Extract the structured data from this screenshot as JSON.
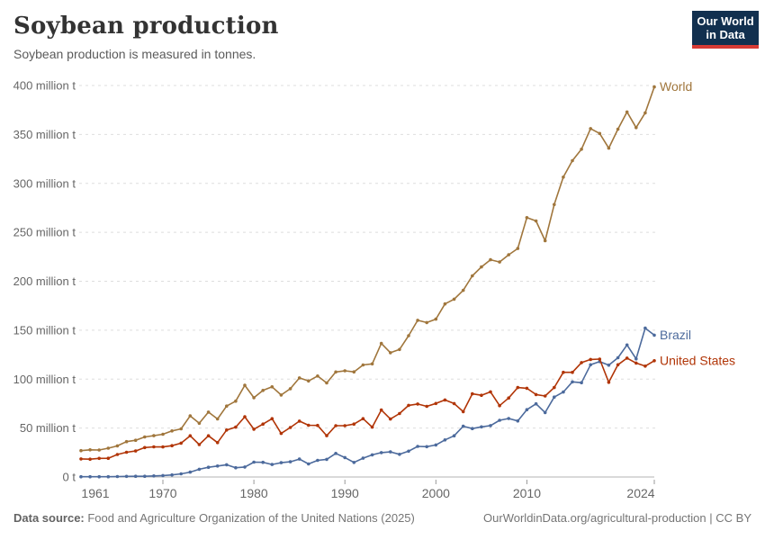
{
  "header": {
    "title": "Soybean production",
    "subtitle": "Soybean production is measured in tonnes."
  },
  "logo": {
    "line1": "Our World",
    "line2": "in Data",
    "bg_color": "#12304f",
    "accent_color": "#d73a34"
  },
  "footer": {
    "datasource_label": "Data source:",
    "datasource_text": " Food and Agriculture Organization of the United Nations (2025)",
    "url": "OurWorldinData.org/agricultural-production",
    "separator": " | ",
    "license": "CC BY"
  },
  "chart_data": {
    "type": "line",
    "title": "Soybean production",
    "unit": "tonnes",
    "xlabel": "",
    "ylabel": "",
    "xlim": [
      1961,
      2024
    ],
    "ylim": [
      0,
      400
    ],
    "grid": "horizontal-dashed",
    "legend_position": "end-of-line-labels",
    "xticks": [
      1961,
      1970,
      1980,
      1990,
      2000,
      2010,
      2024
    ],
    "yticks": [
      {
        "value": 0,
        "label": "0 t"
      },
      {
        "value": 50,
        "label": "50 million t"
      },
      {
        "value": 100,
        "label": "100 million t"
      },
      {
        "value": 150,
        "label": "150 million t"
      },
      {
        "value": 200,
        "label": "200 million t"
      },
      {
        "value": 250,
        "label": "250 million t"
      },
      {
        "value": 300,
        "label": "300 million t"
      },
      {
        "value": 350,
        "label": "350 million t"
      },
      {
        "value": 400,
        "label": "400 million t"
      }
    ],
    "x": [
      1961,
      1962,
      1963,
      1964,
      1965,
      1966,
      1967,
      1968,
      1969,
      1970,
      1971,
      1972,
      1973,
      1974,
      1975,
      1976,
      1977,
      1978,
      1979,
      1980,
      1981,
      1982,
      1983,
      1984,
      1985,
      1986,
      1987,
      1988,
      1989,
      1990,
      1991,
      1992,
      1993,
      1994,
      1995,
      1996,
      1997,
      1998,
      1999,
      2000,
      2001,
      2002,
      2003,
      2004,
      2005,
      2006,
      2007,
      2008,
      2009,
      2010,
      2011,
      2012,
      2013,
      2014,
      2015,
      2016,
      2017,
      2018,
      2019,
      2020,
      2021,
      2022,
      2023,
      2024
    ],
    "series": [
      {
        "name": "World",
        "color": "#A0763C",
        "values": [
          26.9,
          27.8,
          27.6,
          29.4,
          31.8,
          36.1,
          37.5,
          40.9,
          42.2,
          43.7,
          47.1,
          49.2,
          62.4,
          54.9,
          66.3,
          59.3,
          72.5,
          77.5,
          93.7,
          81.0,
          88.5,
          92.1,
          83.8,
          90.2,
          101.2,
          98.1,
          103.2,
          96.1,
          107.3,
          108.5,
          107.4,
          114.5,
          115.6,
          136.5,
          127.0,
          130.3,
          144.4,
          160.1,
          157.8,
          161.3,
          176.8,
          181.7,
          190.7,
          205.5,
          214.6,
          222.0,
          219.7,
          227.0,
          233.5,
          265.0,
          261.6,
          241.4,
          278.3,
          306.4,
          323.2,
          334.9,
          356.0,
          351.0,
          336.0,
          355.4,
          373.0,
          357.0,
          372.0,
          398.5
        ]
      },
      {
        "name": "Brazil",
        "color": "#4C6A9C",
        "values": [
          0.3,
          0.3,
          0.3,
          0.3,
          0.5,
          0.6,
          0.7,
          0.7,
          1.1,
          1.5,
          2.1,
          3.2,
          5.0,
          7.9,
          9.9,
          11.2,
          12.5,
          9.5,
          10.2,
          15.2,
          15.0,
          12.8,
          14.6,
          15.5,
          18.3,
          13.3,
          17.0,
          18.0,
          24.1,
          19.9,
          14.9,
          19.2,
          22.6,
          24.9,
          25.7,
          23.2,
          26.4,
          31.3,
          31.0,
          32.7,
          37.9,
          42.1,
          51.9,
          49.5,
          51.2,
          52.5,
          57.9,
          59.8,
          57.3,
          68.8,
          74.8,
          65.8,
          81.7,
          86.8,
          97.2,
          96.4,
          114.7,
          117.9,
          114.3,
          121.8,
          134.9,
          120.7,
          152.1,
          144.9
        ]
      },
      {
        "name": "United States",
        "color": "#B13507",
        "values": [
          18.5,
          18.2,
          19.0,
          19.1,
          23.0,
          25.3,
          26.6,
          30.1,
          30.8,
          30.7,
          32.0,
          34.6,
          42.1,
          33.1,
          42.1,
          35.1,
          48.0,
          50.9,
          61.5,
          48.8,
          54.1,
          59.6,
          44.5,
          50.6,
          57.1,
          52.9,
          52.7,
          42.2,
          52.4,
          52.4,
          54.1,
          59.6,
          50.9,
          68.4,
          59.2,
          64.8,
          73.2,
          74.6,
          72.2,
          75.1,
          78.7,
          75.0,
          66.8,
          85.0,
          83.5,
          87.0,
          72.9,
          80.7,
          91.4,
          90.7,
          84.2,
          82.8,
          91.4,
          106.9,
          106.9,
          116.9,
          120.1,
          120.5,
          96.7,
          114.7,
          121.5,
          116.4,
          113.3,
          118.8
        ]
      }
    ]
  }
}
